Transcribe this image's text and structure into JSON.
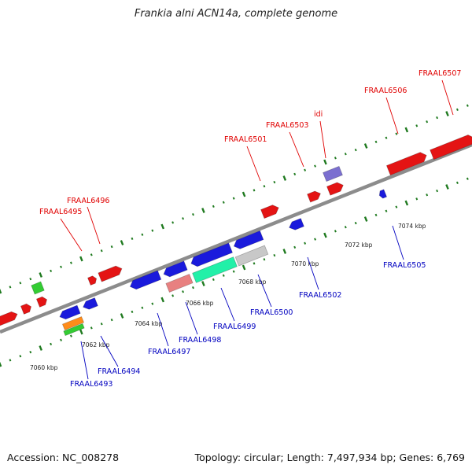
{
  "title": "Frankia alni ACN14a, complete genome",
  "footer": {
    "accession": "Accession: NC_008278",
    "summary": "Topology: circular; Length: 7,497,934 bp; Genes: 6,769"
  },
  "colors": {
    "backbone": "#8c8c8c",
    "tick": "#1f7a1f",
    "label_top": "#e00000",
    "label_bottom": "#0000c0"
  },
  "chart_data": {
    "type": "genome_map",
    "kbp_labels": [
      "7060 kbp",
      "7062 kbp",
      "7064 kbp",
      "7066 kbp",
      "7068 kbp",
      "7070 kbp",
      "7072 kbp",
      "7074 kbp"
    ],
    "top_labels": [
      "FRAAL6495",
      "FRAAL6496",
      "FRAAL6501",
      "FRAAL6503",
      "idi",
      "FRAAL6506",
      "FRAAL6507"
    ],
    "bottom_labels": [
      "FRAAL6493",
      "FRAAL6494",
      "FRAAL6497",
      "FRAAL6498",
      "FRAAL6499",
      "FRAAL6500",
      "FRAAL6502",
      "FRAAL6505"
    ],
    "feature_colors": {
      "red": "#e41414",
      "blue": "#1a1adc",
      "green": "#33cc33",
      "orange": "#ff8c1a",
      "purple": "#7b6fd0",
      "pink": "#e88080",
      "teal": "#22f0a8",
      "gray": "#c8c8c8"
    }
  }
}
